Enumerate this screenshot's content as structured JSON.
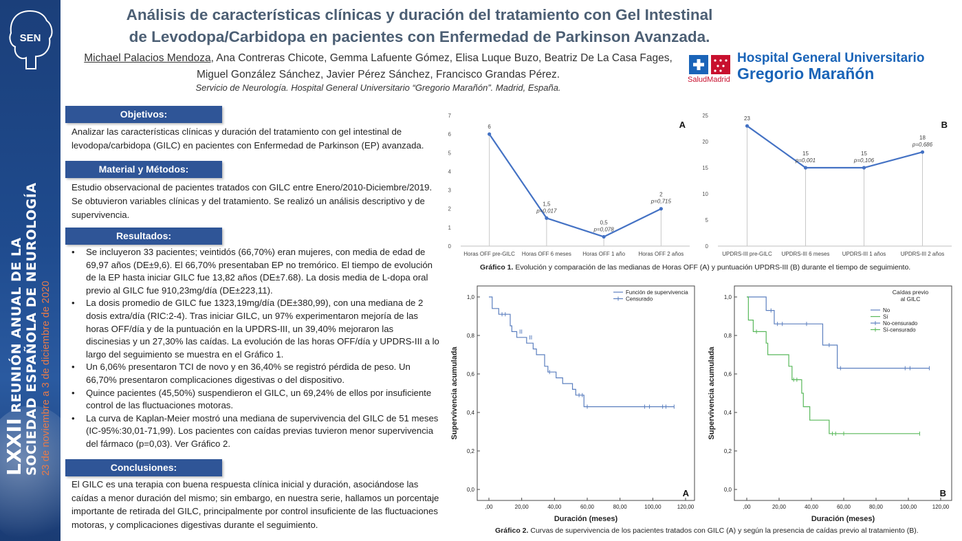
{
  "banner": {
    "edition": "LXXII",
    "line1": "REUNIÓN ANUAL DE LA",
    "line2": "SOCIEDAD ESPAÑOLA DE NEUROLOGÍA",
    "dates": "23 de noviembre a 3 de diciembre de 2020",
    "logo_text": "SEN"
  },
  "header": {
    "title": "Análisis de características clínicas y duración del tratamiento con Gel Intestinal de Levodopa/Carbidopa en pacientes con Enfermedad de Parkinson Avanzada.",
    "first_author": "Michael Palacios Mendoza",
    "coauthors": ", Ana Contreras Chicote, Gemma Lafuente Gómez, Elisa Luque Buzo, Beatriz De La Casa Fages, Miguel González Sánchez, Javier Pérez Sánchez, Francisco Grandas Pérez.",
    "affiliation": "Servicio de Neurología. Hospital General Universitario “Gregorio Marañón”. Madrid, España."
  },
  "hospital_logo": {
    "line1": "Hospital General Universitario",
    "line2": "Gregorio Marañón",
    "salud": "SaludMadrid",
    "accent": "#c8102e",
    "brand": "#1a64b8"
  },
  "sections": {
    "objetivos": {
      "heading": "Objetivos:",
      "text": "Analizar las características clínicas y duración del tratamiento con gel intestinal de levodopa/carbidopa (GILC) en pacientes con Enfermedad de Parkinson (EP) avanzada."
    },
    "metodos": {
      "heading": "Material y Métodos:",
      "text": "Estudio observacional de pacientes tratados con GILC entre Enero/2010-Diciembre/2019.  Se obtuvieron variables clínicas y del tratamiento. Se realizó un análisis descriptivo y de supervivencia."
    },
    "resultados": {
      "heading": "Resultados:",
      "items": [
        "Se incluyeron 33 pacientes; veintidós (66,70%) eran mujeres, con media de edad de 69,97 años (DE±9,6). El 66,70% presentaban EP no tremórico. El tiempo de evolución de la EP hasta iniciar GILC fue 13,82 años (DE±7.68). La dosis media de L-dopa oral previo al GILC fue 910,23mg/día (DE±223,11).",
        "La dosis promedio de GILC fue 1323,19mg/día (DE±380,99), con una mediana de 2 dosis extra/día (RIC:2-4). Tras iniciar GILC, un 97% experimentaron mejoría de las horas OFF/día y de la puntuación en la UPDRS-III, un 39,40% mejoraron las discinesias y un 27,30% las caídas. La evolución de las horas OFF/día y UPDRS-III a lo largo del seguimiento se muestra en el Gráfico 1.",
        "Un 6,06% presentaron TCI de novo y en 36,40% se registró pérdida de peso. Un 66,70% presentaron complicaciones digestivas o del dispositivo.",
        "Quince pacientes (45,50%) suspendieron el GILC, un 69,24% de ellos por insuficiente control de las fluctuaciones motoras.",
        "La curva de Kaplan-Meier mostró una mediana de supervivencia del GILC de 51 meses (IC-95%:30,01-71,99). Los pacientes con caídas previas tuvieron menor supervivencia del fármaco (p=0,03). Ver Gráfico 2."
      ]
    },
    "conclusiones": {
      "heading": "Conclusiones:",
      "text": "El GILC es una terapia con buena respuesta clínica inicial y duración, asociándose las caídas a menor duración del mismo; sin embargo, en nuestra serie, hallamos un porcentaje importante de retirada del GILC, principalmente por control insuficiente de las fluctuaciones motoras, y complicaciones digestivas durante el seguimiento."
    }
  },
  "captions": {
    "g1_label": "Gráfico 1.",
    "g1_text": " Evolución y comparación de las medianas de Horas OFF (A) y puntuación UPDRS-III (B) durante el tiempo de seguimiento.",
    "g2_label": "Gráfico 2.",
    "g2_text": " Curvas de supervivencia de los pacientes tratados con GILC (A) y según la presencia de caídas previo al tratamiento (B)."
  },
  "chart_data": [
    {
      "id": "g1a",
      "type": "line",
      "panel": "A",
      "categories": [
        "Horas OFF pre-GILC",
        "Horas OFF 6 meses",
        "Horas OFF 1 año",
        "Horas OFF 2 años"
      ],
      "values": [
        6,
        1.5,
        0.5,
        2
      ],
      "value_labels": [
        "6",
        "1,5",
        "0,5",
        "2"
      ],
      "p_labels": [
        "",
        "p=0,017",
        "p=0,078",
        "p=0,715"
      ],
      "ylim": [
        0,
        7
      ],
      "yticks": [
        "0",
        "1",
        "2",
        "3",
        "4",
        "5",
        "6",
        "7"
      ],
      "color": "#4472c4"
    },
    {
      "id": "g1b",
      "type": "line",
      "panel": "B",
      "categories": [
        "UPDRS-III pre-GILC",
        "UPDRS-III 6 meses",
        "UPDRS-III 1 años",
        "UPDRS-III 2 años"
      ],
      "values": [
        23,
        15,
        15,
        18
      ],
      "value_labels": [
        "23",
        "15",
        "15",
        "18"
      ],
      "p_labels": [
        "",
        "p=0,001",
        "p=0,106",
        "p=0,686"
      ],
      "ylim": [
        0,
        25
      ],
      "yticks": [
        "0",
        "5",
        "10",
        "15",
        "20",
        "25"
      ],
      "color": "#4472c4"
    },
    {
      "id": "g2a",
      "type": "line",
      "panel": "A",
      "subtype": "kaplan-meier",
      "xlabel": "Duración (meses)",
      "ylabel": "Supervivencia acumulada",
      "xlim": [
        0,
        120
      ],
      "ylim": [
        0,
        1
      ],
      "xticks": [
        ",00",
        "20,00",
        "40,00",
        "60,00",
        "80,00",
        "100,00",
        "120,00"
      ],
      "yticks": [
        "0,0",
        "0,2",
        "0,4",
        "0,6",
        "0,8",
        "1,0"
      ],
      "legend": [
        "Función de supervivencia",
        "Censurado"
      ],
      "series": [
        {
          "name": "Función de supervivencia",
          "color": "#5b7fbf",
          "steps": [
            [
              0,
              1.0
            ],
            [
              2,
              0.94
            ],
            [
              6,
              0.91
            ],
            [
              13,
              0.85
            ],
            [
              14,
              0.82
            ],
            [
              17,
              0.79
            ],
            [
              23,
              0.76
            ],
            [
              27,
              0.73
            ],
            [
              29,
              0.7
            ],
            [
              34,
              0.64
            ],
            [
              36,
              0.61
            ],
            [
              41,
              0.58
            ],
            [
              45,
              0.55
            ],
            [
              51,
              0.52
            ],
            [
              53,
              0.49
            ],
            [
              58,
              0.43
            ],
            [
              113,
              0.43
            ]
          ],
          "censored": [
            [
              8,
              0.91
            ],
            [
              10,
              0.91
            ],
            [
              19,
              0.82
            ],
            [
              20,
              0.82
            ],
            [
              25,
              0.79
            ],
            [
              26,
              0.79
            ],
            [
              37,
              0.61
            ],
            [
              55,
              0.49
            ],
            [
              57,
              0.49
            ],
            [
              60,
              0.43
            ],
            [
              95,
              0.43
            ],
            [
              98,
              0.43
            ],
            [
              106,
              0.43
            ],
            [
              108,
              0.43
            ],
            [
              113,
              0.43
            ]
          ]
        }
      ]
    },
    {
      "id": "g2b",
      "type": "line",
      "panel": "B",
      "subtype": "kaplan-meier",
      "xlabel": "Duración (meses)",
      "ylabel": "Supervivencia acumulada",
      "xlim": [
        0,
        120
      ],
      "ylim": [
        0,
        1
      ],
      "xticks": [
        ",00",
        "20,00",
        "40,00",
        "60,00",
        "80,00",
        "100,00",
        "120,00"
      ],
      "yticks": [
        "0,0",
        "0,2",
        "0,4",
        "0,6",
        "0,8",
        "1,0"
      ],
      "legend_title": "Caídas previo\nal GILC",
      "legend": [
        "No",
        "Sí",
        "No-censurado",
        "Sí-censurado"
      ],
      "series": [
        {
          "name": "No",
          "color": "#5b7fbf",
          "steps": [
            [
              0,
              1.0
            ],
            [
              11,
              1.0
            ],
            [
              12,
              0.93
            ],
            [
              17,
              0.86
            ],
            [
              47,
              0.75
            ],
            [
              56,
              0.63
            ],
            [
              113,
              0.63
            ]
          ],
          "censored": [
            [
              15,
              0.93
            ],
            [
              19,
              0.86
            ],
            [
              22,
              0.86
            ],
            [
              37,
              0.86
            ],
            [
              51,
              0.75
            ],
            [
              58,
              0.63
            ],
            [
              98,
              0.63
            ],
            [
              101,
              0.63
            ],
            [
              113,
              0.63
            ]
          ]
        },
        {
          "name": "Sí",
          "color": "#58b85a",
          "steps": [
            [
              0,
              1.0
            ],
            [
              1,
              0.88
            ],
            [
              4,
              0.82
            ],
            [
              12,
              0.76
            ],
            [
              13,
              0.7
            ],
            [
              26,
              0.64
            ],
            [
              28,
              0.57
            ],
            [
              34,
              0.5
            ],
            [
              35,
              0.43
            ],
            [
              39,
              0.36
            ],
            [
              51,
              0.29
            ],
            [
              107,
              0.29
            ]
          ],
          "censored": [
            [
              6,
              0.82
            ],
            [
              29,
              0.57
            ],
            [
              31,
              0.57
            ],
            [
              53,
              0.29
            ],
            [
              55,
              0.29
            ],
            [
              60,
              0.29
            ],
            [
              107,
              0.29
            ]
          ]
        }
      ]
    }
  ]
}
